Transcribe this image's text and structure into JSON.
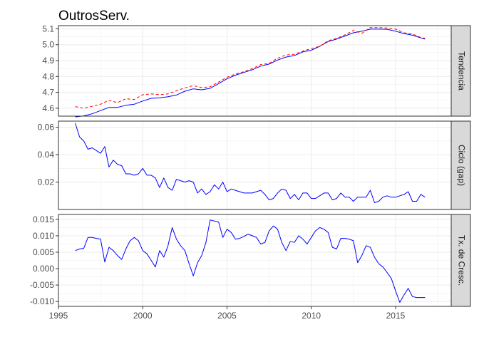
{
  "chart_data": {
    "type": "line",
    "title": "OutrosServ.",
    "xlabel": "",
    "x_ticks": [
      1995,
      2000,
      2005,
      2010,
      2015
    ],
    "xlim": [
      1995,
      2018.3
    ],
    "grid": true,
    "legend": "none",
    "colors": {
      "blue": "#0000ff",
      "red": "#ff0000",
      "panel_border": "#333333",
      "strip_fill": "#d9d9d9",
      "grid": "#ebebeb"
    },
    "panels": [
      {
        "strip": "Tendencia",
        "ylim": [
          4.55,
          5.12
        ],
        "y_ticks": [
          "4.6",
          "4.7",
          "4.8",
          "4.9",
          "5.0",
          "5.1"
        ],
        "series": [
          {
            "color": "#0000ff",
            "style": "solid",
            "x": [
              1996.0,
              1996.5,
              1997.0,
              1997.5,
              1998.0,
              1998.5,
              1999.0,
              1999.5,
              2000.0,
              2000.5,
              2001.0,
              2001.5,
              2002.0,
              2002.5,
              2003.0,
              2003.5,
              2004.0,
              2004.5,
              2005.0,
              2005.5,
              2006.0,
              2006.5,
              2007.0,
              2007.5,
              2008.0,
              2008.5,
              2009.0,
              2009.5,
              2010.0,
              2010.5,
              2011.0,
              2011.5,
              2012.0,
              2012.5,
              2013.0,
              2013.5,
              2014.0,
              2014.5,
              2015.0,
              2015.5,
              2016.0,
              2016.5,
              2016.75
            ],
            "values": [
              4.545,
              4.552,
              4.565,
              4.585,
              4.605,
              4.605,
              4.618,
              4.625,
              4.645,
              4.662,
              4.665,
              4.672,
              4.683,
              4.707,
              4.722,
              4.716,
              4.725,
              4.755,
              4.785,
              4.808,
              4.825,
              4.842,
              4.865,
              4.878,
              4.903,
              4.922,
              4.932,
              4.955,
              4.965,
              4.99,
              5.02,
              5.035,
              5.055,
              5.075,
              5.085,
              5.098,
              5.098,
              5.097,
              5.085,
              5.07,
              5.06,
              5.043,
              5.035
            ]
          },
          {
            "color": "#ff0000",
            "style": "dashed",
            "x": [
              1996.0,
              1996.5,
              1997.0,
              1997.5,
              1998.0,
              1998.5,
              1999.0,
              1999.5,
              2000.0,
              2000.5,
              2001.0,
              2001.5,
              2002.0,
              2002.5,
              2003.0,
              2003.5,
              2004.0,
              2004.5,
              2005.0,
              2005.5,
              2006.0,
              2006.5,
              2007.0,
              2007.5,
              2008.0,
              2008.5,
              2009.0,
              2009.5,
              2010.0,
              2010.5,
              2011.0,
              2011.5,
              2012.0,
              2012.5,
              2013.0,
              2013.5,
              2014.0,
              2014.5,
              2015.0,
              2015.5,
              2016.0,
              2016.5,
              2016.75
            ],
            "values": [
              4.61,
              4.6,
              4.612,
              4.625,
              4.65,
              4.635,
              4.66,
              4.655,
              4.685,
              4.69,
              4.685,
              4.69,
              4.71,
              4.728,
              4.742,
              4.73,
              4.735,
              4.765,
              4.795,
              4.815,
              4.83,
              4.85,
              4.875,
              4.882,
              4.915,
              4.935,
              4.94,
              4.96,
              4.975,
              4.99,
              5.025,
              5.04,
              5.062,
              5.09,
              5.072,
              5.108,
              5.108,
              5.105,
              5.098,
              5.075,
              5.068,
              5.045,
              5.04
            ]
          }
        ]
      },
      {
        "strip": "Ciclo (gap)",
        "ylim": [
          0.0,
          0.0645
        ],
        "y_ticks": [
          "0.02",
          "0.04",
          "0.06"
        ],
        "series": [
          {
            "color": "#0000ff",
            "style": "solid",
            "x": [
              1996.0,
              1996.25,
              1996.5,
              1996.75,
              1997.0,
              1997.25,
              1997.5,
              1997.75,
              1998.0,
              1998.25,
              1998.5,
              1998.75,
              1999.0,
              1999.25,
              1999.5,
              1999.75,
              2000.0,
              2000.25,
              2000.5,
              2000.75,
              2001.0,
              2001.25,
              2001.5,
              2001.75,
              2002.0,
              2002.25,
              2002.5,
              2002.75,
              2003.0,
              2003.25,
              2003.5,
              2003.75,
              2004.0,
              2004.25,
              2004.5,
              2004.75,
              2005.0,
              2005.25,
              2005.5,
              2005.75,
              2006.0,
              2006.25,
              2006.5,
              2006.75,
              2007.0,
              2007.25,
              2007.5,
              2007.75,
              2008.0,
              2008.25,
              2008.5,
              2008.75,
              2009.0,
              2009.25,
              2009.5,
              2009.75,
              2010.0,
              2010.25,
              2010.5,
              2010.75,
              2011.0,
              2011.25,
              2011.5,
              2011.75,
              2012.0,
              2012.25,
              2012.5,
              2012.75,
              2013.0,
              2013.25,
              2013.5,
              2013.75,
              2014.0,
              2014.25,
              2014.5,
              2014.75,
              2015.0,
              2015.25,
              2015.5,
              2015.75,
              2016.0,
              2016.25,
              2016.5,
              2016.75
            ],
            "values": [
              0.063,
              0.053,
              0.05,
              0.044,
              0.045,
              0.043,
              0.041,
              0.046,
              0.031,
              0.036,
              0.033,
              0.032,
              0.026,
              0.026,
              0.025,
              0.026,
              0.03,
              0.025,
              0.025,
              0.023,
              0.016,
              0.023,
              0.016,
              0.014,
              0.022,
              0.021,
              0.02,
              0.021,
              0.02,
              0.012,
              0.015,
              0.011,
              0.013,
              0.018,
              0.015,
              0.02,
              0.013,
              0.015,
              0.014,
              0.013,
              0.012,
              0.012,
              0.012,
              0.013,
              0.014,
              0.011,
              0.007,
              0.008,
              0.012,
              0.015,
              0.014,
              0.008,
              0.011,
              0.007,
              0.012,
              0.012,
              0.008,
              0.008,
              0.01,
              0.012,
              0.012,
              0.007,
              0.008,
              0.012,
              0.009,
              0.009,
              0.006,
              0.009,
              0.009,
              0.009,
              0.014,
              0.005,
              0.006,
              0.009,
              0.01,
              0.009,
              0.009,
              0.01,
              0.011,
              0.013,
              0.006,
              0.006,
              0.011,
              0.009
            ]
          }
        ]
      },
      {
        "strip": "Tx. de Cresc.",
        "ylim": [
          -0.0115,
          0.0165
        ],
        "y_ticks": [
          "-0.010",
          "-0.005",
          "0.000",
          "0.005",
          "0.010",
          "0.015"
        ],
        "series": [
          {
            "color": "#0000ff",
            "style": "solid",
            "x": [
              1996.0,
              1996.25,
              1996.5,
              1996.75,
              1997.0,
              1997.25,
              1997.5,
              1997.75,
              1998.0,
              1998.25,
              1998.5,
              1998.75,
              1999.0,
              1999.25,
              1999.5,
              1999.75,
              2000.0,
              2000.25,
              2000.5,
              2000.75,
              2001.0,
              2001.25,
              2001.5,
              2001.75,
              2002.0,
              2002.25,
              2002.5,
              2002.75,
              2003.0,
              2003.25,
              2003.5,
              2003.75,
              2004.0,
              2004.25,
              2004.5,
              2004.75,
              2005.0,
              2005.25,
              2005.5,
              2005.75,
              2006.0,
              2006.25,
              2006.5,
              2006.75,
              2007.0,
              2007.25,
              2007.5,
              2007.75,
              2008.0,
              2008.25,
              2008.5,
              2008.75,
              2009.0,
              2009.25,
              2009.5,
              2009.75,
              2010.0,
              2010.25,
              2010.5,
              2010.75,
              2011.0,
              2011.25,
              2011.5,
              2011.75,
              2012.0,
              2012.25,
              2012.5,
              2012.75,
              2013.0,
              2013.25,
              2013.5,
              2013.75,
              2014.0,
              2014.25,
              2014.5,
              2014.75,
              2015.0,
              2015.25,
              2015.5,
              2015.75,
              2016.0,
              2016.25,
              2016.5,
              2016.75
            ],
            "values": [
              0.0055,
              0.006,
              0.0062,
              0.0095,
              0.0095,
              0.0092,
              0.009,
              0.002,
              0.0065,
              0.0055,
              0.004,
              0.0028,
              0.006,
              0.0085,
              0.0095,
              0.0085,
              0.0055,
              0.0045,
              0.0025,
              0.0005,
              0.0055,
              0.0035,
              0.007,
              0.0125,
              0.009,
              0.007,
              0.0055,
              0.0015,
              -0.0022,
              0.0018,
              0.004,
              0.008,
              0.0148,
              0.0145,
              0.0142,
              0.0095,
              0.012,
              0.011,
              0.009,
              0.0092,
              0.0098,
              0.0105,
              0.01,
              0.0095,
              0.0075,
              0.008,
              0.0115,
              0.013,
              0.012,
              0.008,
              0.0055,
              0.0083,
              0.008,
              0.01,
              0.009,
              0.0075,
              0.0095,
              0.0115,
              0.0125,
              0.012,
              0.011,
              0.0065,
              0.006,
              0.0092,
              0.0092,
              0.009,
              0.0085,
              0.0018,
              0.004,
              0.007,
              0.0065,
              0.0035,
              0.0015,
              0.0005,
              -0.0012,
              -0.003,
              -0.0068,
              -0.0103,
              -0.008,
              -0.006,
              -0.0085,
              -0.0088,
              -0.0088,
              -0.0088
            ]
          }
        ]
      }
    ]
  }
}
